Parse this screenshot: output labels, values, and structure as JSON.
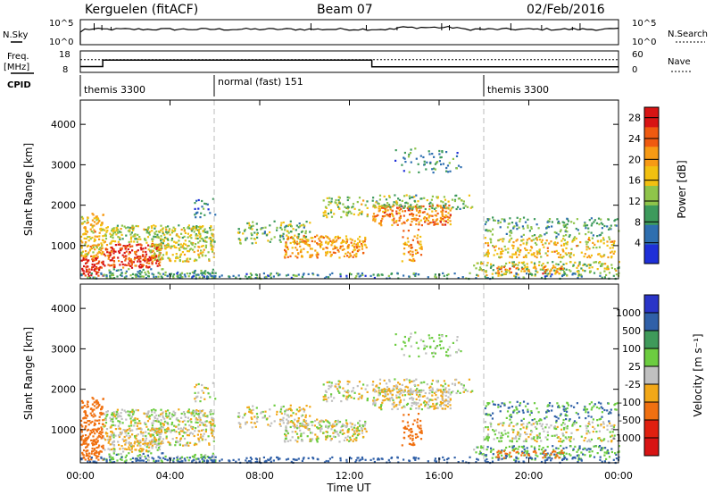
{
  "header": {
    "station": "Kerguelen (fitACF)",
    "beam": "Beam 07",
    "date": "02/Feb/2016"
  },
  "nsky_panel": {
    "left_label": "N.Sky",
    "right_label": "N.Search",
    "tick_top": "10^5",
    "tick_bottom": "10^0"
  },
  "freq_panel": {
    "left_label_1": "Freq.",
    "left_label_2": "[MHz]",
    "left_ticks": [
      "18",
      "8"
    ],
    "right_label": "Nave",
    "right_ticks": [
      "60",
      "0"
    ]
  },
  "cpid": {
    "label": "CPID",
    "segments": [
      {
        "start_hour": 0,
        "name": "themis 3300"
      },
      {
        "start_hour": 6,
        "name": "normal (fast) 151"
      },
      {
        "start_hour": 18,
        "name": "themis 3300"
      }
    ]
  },
  "chart_data": [
    {
      "type": "heatmap",
      "title": "",
      "xlabel": "Time UT",
      "ylabel": "Slant Range [km]",
      "x_ticks": [
        "00:00",
        "04:00",
        "08:00",
        "12:00",
        "16:00",
        "20:00",
        "00:00"
      ],
      "xlim": [
        0,
        24
      ],
      "ylim": [
        180,
        4600
      ],
      "y_ticks": [
        1000,
        2000,
        3000,
        4000
      ],
      "colorbar_label": "Power [dB]",
      "colorbar_ticks": [
        4,
        8,
        12,
        16,
        20,
        24,
        28
      ],
      "colorbar_colors": [
        "#1e2fd8",
        "#2e6fb0",
        "#3d9a5c",
        "#8fc44a",
        "#f2c010",
        "#f79a14",
        "#ef5a10",
        "#d81414"
      ],
      "colorbar_range": [
        0,
        30
      ],
      "dashed_lines_hours": [
        6,
        18
      ]
    },
    {
      "type": "heatmap",
      "title": "",
      "xlabel": "Time UT",
      "ylabel": "Slant Range [km]",
      "x_ticks": [
        "00:00",
        "04:00",
        "08:00",
        "12:00",
        "16:00",
        "20:00",
        "00:00"
      ],
      "xlim": [
        0,
        24
      ],
      "ylim": [
        180,
        4600
      ],
      "y_ticks": [
        1000,
        2000,
        3000,
        4000
      ],
      "colorbar_label": "Velocity [m s⁻¹]",
      "colorbar_ticks": [
        "1000",
        "500",
        "100",
        "25",
        "-25",
        "-100",
        "-500",
        "-1000"
      ],
      "colorbar_colors": [
        "#2a35c8",
        "#3060a8",
        "#3f9a5a",
        "#6ccc40",
        "#c0c0c0",
        "#f2a818",
        "#f07010",
        "#e02010",
        "#d81414"
      ],
      "dashed_lines_hours": [
        6,
        18
      ]
    }
  ],
  "scatter_regions": [
    {
      "t0": 0.0,
      "t1": 1.0,
      "r0": 240,
      "r1": 700,
      "p": 28,
      "v": -300,
      "d": 0.95
    },
    {
      "t0": 0.0,
      "t1": 1.0,
      "r0": 700,
      "r1": 1800,
      "p": 18,
      "v": -200,
      "d": 0.85
    },
    {
      "t0": 1.0,
      "t1": 3.6,
      "r0": 450,
      "r1": 1050,
      "p": 26,
      "v": -20,
      "d": 0.9
    },
    {
      "t0": 1.0,
      "t1": 6.0,
      "r0": 1050,
      "r1": 1500,
      "p": 14,
      "v": 10,
      "d": 0.75
    },
    {
      "t0": 3.0,
      "t1": 6.0,
      "r0": 600,
      "r1": 1050,
      "p": 16,
      "v": -10,
      "d": 0.7
    },
    {
      "t0": 1.0,
      "t1": 6.0,
      "r0": 200,
      "r1": 420,
      "p": 10,
      "v": 60,
      "d": 0.55
    },
    {
      "t0": 5.0,
      "t1": 6.0,
      "r0": 1700,
      "r1": 2200,
      "p": 8,
      "v": 0,
      "d": 0.3
    },
    {
      "t0": 7.0,
      "t1": 10.2,
      "r0": 1050,
      "r1": 1600,
      "p": 12,
      "v": -5,
      "d": 0.45
    },
    {
      "t0": 9.0,
      "t1": 12.8,
      "r0": 700,
      "r1": 1250,
      "p": 20,
      "v": 0,
      "d": 0.7
    },
    {
      "t0": 10.8,
      "t1": 12.8,
      "r0": 1700,
      "r1": 2200,
      "p": 14,
      "v": 0,
      "d": 0.5
    },
    {
      "t0": 13.0,
      "t1": 16.5,
      "r0": 1500,
      "r1": 2000,
      "p": 22,
      "v": -15,
      "d": 0.85
    },
    {
      "t0": 13.0,
      "t1": 17.5,
      "r0": 1900,
      "r1": 2250,
      "p": 12,
      "v": 0,
      "d": 0.5
    },
    {
      "t0": 14.3,
      "t1": 15.2,
      "r0": 600,
      "r1": 1400,
      "p": 20,
      "v": -300,
      "d": 0.5
    },
    {
      "t0": 14.0,
      "t1": 17.0,
      "r0": 2800,
      "r1": 3400,
      "p": 8,
      "v": 40,
      "d": 0.22
    },
    {
      "t0": 17.5,
      "t1": 24.0,
      "r0": 250,
      "r1": 600,
      "p": 14,
      "v": 80,
      "d": 0.55
    },
    {
      "t0": 18.5,
      "t1": 21.5,
      "r0": 300,
      "r1": 480,
      "p": 22,
      "v": -300,
      "d": 0.5
    },
    {
      "t0": 18.0,
      "t1": 23.8,
      "r0": 700,
      "r1": 1200,
      "p": 18,
      "v": 10,
      "d": 0.5
    },
    {
      "t0": 18.0,
      "t1": 24.0,
      "r0": 1200,
      "r1": 1700,
      "p": 10,
      "v": 100,
      "d": 0.35
    },
    {
      "t0": 0.0,
      "t1": 24.0,
      "r0": 180,
      "r1": 320,
      "p": 8,
      "v": 200,
      "d": 0.45
    }
  ]
}
